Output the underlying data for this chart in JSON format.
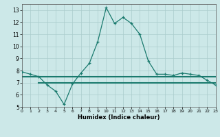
{
  "xlabel": "Humidex (Indice chaleur)",
  "line1_x": [
    0,
    1,
    2,
    3,
    4,
    5,
    6,
    7,
    8,
    9,
    10,
    11,
    12,
    13,
    14,
    15,
    16,
    17,
    18,
    19,
    20,
    21,
    22,
    23
  ],
  "line1_y": [
    7.9,
    7.7,
    7.5,
    6.8,
    6.3,
    5.2,
    6.9,
    7.8,
    8.6,
    10.4,
    13.2,
    11.9,
    12.4,
    11.9,
    11.0,
    8.8,
    7.7,
    7.7,
    7.6,
    7.8,
    7.7,
    7.6,
    7.2,
    6.8
  ],
  "line2_x": [
    0,
    23
  ],
  "line2_y": [
    7.5,
    7.5
  ],
  "line3_x": [
    2,
    23
  ],
  "line3_y": [
    7.0,
    7.0
  ],
  "color": "#1a7a6e",
  "bg_color": "#cce8e8",
  "grid_color": "#aacccc",
  "xlim": [
    0,
    23
  ],
  "ylim": [
    5,
    13.5
  ],
  "yticks": [
    5,
    6,
    7,
    8,
    9,
    10,
    11,
    12,
    13
  ],
  "xticks": [
    0,
    1,
    2,
    3,
    4,
    5,
    6,
    7,
    8,
    9,
    10,
    11,
    12,
    13,
    14,
    15,
    16,
    17,
    18,
    19,
    20,
    21,
    22,
    23
  ]
}
